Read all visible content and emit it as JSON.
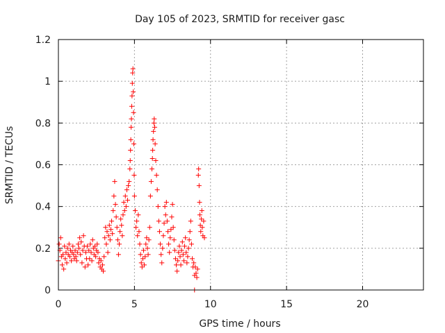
{
  "chart_data": {
    "type": "scatter",
    "title": "Day 105 of 2023, SRMTID for receiver gasc",
    "xlabel": "GPS time / hours",
    "ylabel": "SRMTID / TECUs",
    "xlim": [
      0,
      24
    ],
    "ylim": [
      0,
      1.2
    ],
    "xticks": [
      0,
      5,
      10,
      15,
      20
    ],
    "xtick_labels": [
      "0",
      "5",
      "10",
      "15",
      "20"
    ],
    "yticks": [
      0,
      0.2,
      0.4,
      0.6,
      0.8,
      1,
      1.2
    ],
    "ytick_labels": [
      "0",
      "0.2",
      "0.4",
      "0.6",
      "0.8",
      "1",
      "1.2"
    ],
    "grid": true,
    "marker": "plus",
    "series": [
      {
        "name": "SRMTID",
        "color": "#ff0000",
        "points": [
          [
            0.0,
            0.14
          ],
          [
            0.05,
            0.22
          ],
          [
            0.1,
            0.19
          ],
          [
            0.15,
            0.25
          ],
          [
            0.2,
            0.16
          ],
          [
            0.25,
            0.12
          ],
          [
            0.3,
            0.17
          ],
          [
            0.35,
            0.1
          ],
          [
            0.4,
            0.21
          ],
          [
            0.45,
            0.15
          ],
          [
            0.5,
            0.18
          ],
          [
            0.55,
            0.13
          ],
          [
            0.6,
            0.2
          ],
          [
            0.65,
            0.17
          ],
          [
            0.7,
            0.22
          ],
          [
            0.75,
            0.16
          ],
          [
            0.8,
            0.19
          ],
          [
            0.85,
            0.14
          ],
          [
            0.9,
            0.18
          ],
          [
            0.95,
            0.21
          ],
          [
            1.0,
            0.17
          ],
          [
            1.05,
            0.15
          ],
          [
            1.1,
            0.19
          ],
          [
            1.15,
            0.16
          ],
          [
            1.2,
            0.14
          ],
          [
            1.25,
            0.18
          ],
          [
            1.3,
            0.22
          ],
          [
            1.35,
            0.2
          ],
          [
            1.4,
            0.25
          ],
          [
            1.45,
            0.17
          ],
          [
            1.5,
            0.23
          ],
          [
            1.55,
            0.13
          ],
          [
            1.6,
            0.19
          ],
          [
            1.65,
            0.26
          ],
          [
            1.7,
            0.21
          ],
          [
            1.75,
            0.11
          ],
          [
            1.8,
            0.18
          ],
          [
            1.85,
            0.15
          ],
          [
            1.9,
            0.21
          ],
          [
            1.95,
            0.12
          ],
          [
            2.0,
            0.19
          ],
          [
            2.05,
            0.15
          ],
          [
            2.1,
            0.22
          ],
          [
            2.15,
            0.18
          ],
          [
            2.2,
            0.14
          ],
          [
            2.25,
            0.24
          ],
          [
            2.3,
            0.2
          ],
          [
            2.35,
            0.17
          ],
          [
            2.4,
            0.21
          ],
          [
            2.45,
            0.16
          ],
          [
            2.5,
            0.19
          ],
          [
            2.55,
            0.22
          ],
          [
            2.6,
            0.18
          ],
          [
            2.65,
            0.13
          ],
          [
            2.7,
            0.15
          ],
          [
            2.75,
            0.11
          ],
          [
            2.8,
            0.14
          ],
          [
            2.85,
            0.1
          ],
          [
            2.9,
            0.12
          ],
          [
            2.95,
            0.09
          ],
          [
            3.0,
            0.16
          ],
          [
            3.05,
            0.25
          ],
          [
            3.1,
            0.3
          ],
          [
            3.15,
            0.22
          ],
          [
            3.2,
            0.28
          ],
          [
            3.25,
            0.18
          ],
          [
            3.3,
            0.26
          ],
          [
            3.35,
            0.31
          ],
          [
            3.4,
            0.24
          ],
          [
            3.45,
            0.29
          ],
          [
            3.5,
            0.33
          ],
          [
            3.55,
            0.27
          ],
          [
            3.6,
            0.38
          ],
          [
            3.65,
            0.45
          ],
          [
            3.7,
            0.52
          ],
          [
            3.75,
            0.41
          ],
          [
            3.8,
            0.35
          ],
          [
            3.85,
            0.3
          ],
          [
            3.9,
            0.24
          ],
          [
            3.95,
            0.17
          ],
          [
            4.0,
            0.22
          ],
          [
            4.05,
            0.28
          ],
          [
            4.1,
            0.34
          ],
          [
            4.15,
            0.31
          ],
          [
            4.2,
            0.26
          ],
          [
            4.25,
            0.36
          ],
          [
            4.3,
            0.42
          ],
          [
            4.35,
            0.38
          ],
          [
            4.4,
            0.45
          ],
          [
            4.45,
            0.4
          ],
          [
            4.5,
            0.48
          ],
          [
            4.55,
            0.43
          ],
          [
            4.6,
            0.5
          ],
          [
            4.65,
            0.52
          ],
          [
            4.7,
            0.58
          ],
          [
            4.72,
            0.62
          ],
          [
            4.74,
            0.67
          ],
          [
            4.76,
            0.72
          ],
          [
            4.78,
            0.78
          ],
          [
            4.8,
            0.82
          ],
          [
            4.82,
            0.88
          ],
          [
            4.84,
            0.93
          ],
          [
            4.86,
            0.99
          ],
          [
            4.88,
            1.04
          ],
          [
            4.9,
            1.06
          ],
          [
            4.92,
            0.95
          ],
          [
            4.94,
            0.85
          ],
          [
            4.96,
            0.7
          ],
          [
            4.98,
            0.55
          ],
          [
            5.0,
            0.45
          ],
          [
            5.05,
            0.38
          ],
          [
            5.1,
            0.3
          ],
          [
            5.15,
            0.33
          ],
          [
            5.2,
            0.26
          ],
          [
            5.25,
            0.36
          ],
          [
            5.3,
            0.28
          ],
          [
            5.35,
            0.22
          ],
          [
            5.4,
            0.17
          ],
          [
            5.45,
            0.13
          ],
          [
            5.5,
            0.11
          ],
          [
            5.55,
            0.15
          ],
          [
            5.6,
            0.19
          ],
          [
            5.65,
            0.12
          ],
          [
            5.7,
            0.16
          ],
          [
            5.75,
            0.22
          ],
          [
            5.8,
            0.25
          ],
          [
            5.85,
            0.2
          ],
          [
            5.9,
            0.17
          ],
          [
            5.95,
            0.24
          ],
          [
            6.0,
            0.3
          ],
          [
            6.05,
            0.45
          ],
          [
            6.1,
            0.52
          ],
          [
            6.15,
            0.58
          ],
          [
            6.18,
            0.63
          ],
          [
            6.2,
            0.67
          ],
          [
            6.22,
            0.72
          ],
          [
            6.25,
            0.76
          ],
          [
            6.28,
            0.8
          ],
          [
            6.3,
            0.82
          ],
          [
            6.33,
            0.78
          ],
          [
            6.36,
            0.7
          ],
          [
            6.4,
            0.62
          ],
          [
            6.45,
            0.55
          ],
          [
            6.5,
            0.48
          ],
          [
            6.55,
            0.4
          ],
          [
            6.6,
            0.33
          ],
          [
            6.65,
            0.28
          ],
          [
            6.7,
            0.22
          ],
          [
            6.75,
            0.17
          ],
          [
            6.8,
            0.13
          ],
          [
            6.85,
            0.2
          ],
          [
            6.9,
            0.26
          ],
          [
            6.95,
            0.32
          ],
          [
            7.0,
            0.4
          ],
          [
            7.05,
            0.36
          ],
          [
            7.1,
            0.42
          ],
          [
            7.15,
            0.33
          ],
          [
            7.2,
            0.28
          ],
          [
            7.25,
            0.22
          ],
          [
            7.3,
            0.18
          ],
          [
            7.35,
            0.25
          ],
          [
            7.4,
            0.29
          ],
          [
            7.45,
            0.35
          ],
          [
            7.5,
            0.41
          ],
          [
            7.55,
            0.3
          ],
          [
            7.6,
            0.24
          ],
          [
            7.65,
            0.19
          ],
          [
            7.7,
            0.15
          ],
          [
            7.75,
            0.12
          ],
          [
            7.8,
            0.09
          ],
          [
            7.85,
            0.14
          ],
          [
            7.9,
            0.18
          ],
          [
            7.95,
            0.21
          ],
          [
            8.0,
            0.16
          ],
          [
            8.05,
            0.12
          ],
          [
            8.1,
            0.19
          ],
          [
            8.15,
            0.23
          ],
          [
            8.2,
            0.17
          ],
          [
            8.25,
            0.14
          ],
          [
            8.3,
            0.21
          ],
          [
            8.35,
            0.25
          ],
          [
            8.4,
            0.18
          ],
          [
            8.45,
            0.13
          ],
          [
            8.5,
            0.16
          ],
          [
            8.55,
            0.2
          ],
          [
            8.6,
            0.24
          ],
          [
            8.65,
            0.28
          ],
          [
            8.7,
            0.33
          ],
          [
            8.75,
            0.22
          ],
          [
            8.8,
            0.15
          ],
          [
            8.85,
            0.11
          ],
          [
            8.9,
            0.13
          ],
          [
            8.95,
            0.07
          ],
          [
            9.0,
            0.11
          ],
          [
            9.05,
            0.08
          ],
          [
            9.1,
            0.06
          ],
          [
            9.15,
            0.1
          ],
          [
            9.2,
            0.55
          ],
          [
            9.22,
            0.58
          ],
          [
            9.25,
            0.5
          ],
          [
            9.28,
            0.42
          ],
          [
            9.3,
            0.36
          ],
          [
            9.33,
            0.31
          ],
          [
            9.36,
            0.28
          ],
          [
            9.4,
            0.34
          ],
          [
            9.43,
            0.38
          ],
          [
            9.46,
            0.3
          ],
          [
            9.5,
            0.26
          ],
          [
            9.55,
            0.33
          ],
          [
            9.6,
            0.25
          ],
          [
            8.95,
            0.0
          ]
        ]
      }
    ]
  }
}
